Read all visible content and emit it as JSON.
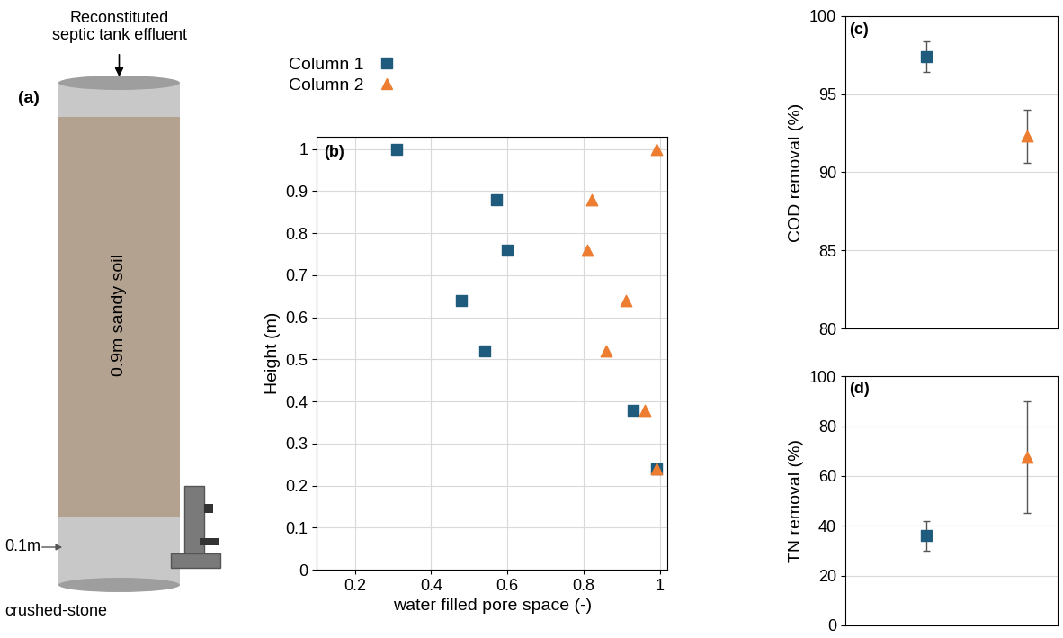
{
  "diagram": {
    "panel_label": "(a)",
    "inlet_label": "Reconstituted\nseptic tank effluent",
    "soil_label": "0.9m sandy soil",
    "stone_label": "0.1m",
    "stone_name": "crushed-stone"
  },
  "chart_data": [
    {
      "type": "scatter",
      "annotations": [
        "(b)"
      ],
      "xlabel": "water filled pore space (-)",
      "ylabel": "Height (m)",
      "xlim": [
        0.1,
        1.02
      ],
      "ylim": [
        0,
        1.03
      ],
      "xticks": [
        0.2,
        0.4,
        0.6,
        0.8,
        1
      ],
      "yticks": [
        0,
        0.1,
        0.2,
        0.3,
        0.4,
        0.5,
        0.6,
        0.7,
        0.8,
        0.9,
        1
      ],
      "grid": true,
      "legend": "upper left",
      "series": [
        {
          "name": "Column 1",
          "color": "#1F5B7C",
          "marker": "square",
          "x": [
            0.31,
            0.57,
            0.6,
            0.48,
            0.54,
            0.93,
            0.99
          ],
          "values": [
            1.0,
            0.88,
            0.76,
            0.64,
            0.52,
            0.38,
            0.24
          ]
        },
        {
          "name": "Column 2",
          "color": "#ED7D31",
          "marker": "triangle",
          "x": [
            0.99,
            0.82,
            0.81,
            0.91,
            0.86,
            0.96,
            0.99
          ],
          "values": [
            1.0,
            0.88,
            0.76,
            0.64,
            0.52,
            0.38,
            0.24
          ]
        }
      ]
    },
    {
      "type": "scatter",
      "annotations": [
        "(c)"
      ],
      "ylabel": "COD removal (%)",
      "categories": [
        null,
        null
      ],
      "ylim": [
        80,
        100
      ],
      "yticks": [
        80,
        85,
        90,
        95,
        100
      ],
      "grid": true,
      "tick_labels": "y",
      "series": [
        {
          "name": "Column 1",
          "color": "#1F5B7C",
          "marker": "square",
          "values": [
            97.4,
            null
          ],
          "errors": [
            1.0,
            null
          ]
        },
        {
          "name": "Column 2",
          "color": "#ED7D31",
          "marker": "triangle",
          "values": [
            null,
            92.3
          ],
          "errors": [
            null,
            1.7
          ]
        }
      ]
    },
    {
      "type": "scatter",
      "annotations": [
        "(d)"
      ],
      "ylabel": "TN removal (%)",
      "categories": [
        null,
        null
      ],
      "ylim": [
        0,
        100
      ],
      "yticks": [
        0,
        20,
        40,
        60,
        80,
        100
      ],
      "grid": true,
      "tick_labels": "y",
      "series": [
        {
          "name": "Column 1",
          "color": "#1F5B7C",
          "marker": "square",
          "values": [
            36,
            null
          ],
          "errors": [
            6,
            null
          ]
        },
        {
          "name": "Column 2",
          "color": "#ED7D31",
          "marker": "triangle",
          "values": [
            null,
            67.5
          ],
          "errors": [
            null,
            22.5
          ]
        }
      ]
    }
  ]
}
